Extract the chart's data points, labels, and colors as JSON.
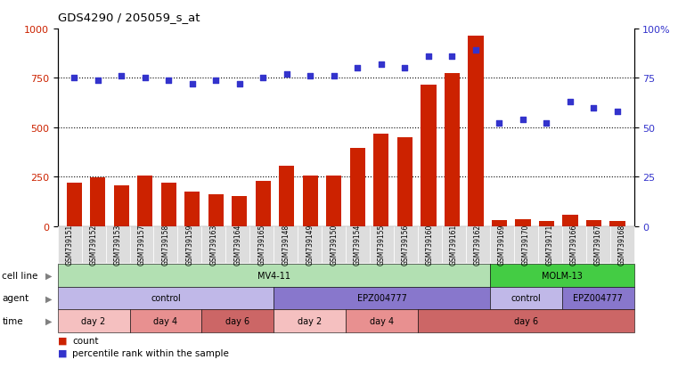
{
  "title": "GDS4290 / 205059_s_at",
  "samples": [
    "GSM739151",
    "GSM739152",
    "GSM739153",
    "GSM739157",
    "GSM739158",
    "GSM739159",
    "GSM739163",
    "GSM739164",
    "GSM739165",
    "GSM739148",
    "GSM739149",
    "GSM739150",
    "GSM739154",
    "GSM739155",
    "GSM739156",
    "GSM739160",
    "GSM739161",
    "GSM739162",
    "GSM739169",
    "GSM739170",
    "GSM739171",
    "GSM739166",
    "GSM739167",
    "GSM739168"
  ],
  "counts": [
    220,
    248,
    205,
    255,
    220,
    175,
    160,
    150,
    230,
    305,
    255,
    255,
    395,
    470,
    450,
    715,
    775,
    965,
    30,
    35,
    25,
    55,
    30,
    25
  ],
  "percentile": [
    75,
    74,
    76,
    75,
    74,
    72,
    74,
    72,
    75,
    77,
    76,
    76,
    80,
    82,
    80,
    86,
    86,
    89,
    52,
    54,
    52,
    63,
    60,
    58
  ],
  "bar_color": "#cc2200",
  "dot_color": "#3333cc",
  "ylim_left": [
    0,
    1000
  ],
  "ylim_right": [
    0,
    100
  ],
  "yticks_left": [
    0,
    250,
    500,
    750,
    1000
  ],
  "yticks_right": [
    0,
    25,
    50,
    75,
    100
  ],
  "cell_line_spans": [
    {
      "label": "MV4-11",
      "start": 0,
      "end": 18,
      "color": "#b2e0b2"
    },
    {
      "label": "MOLM-13",
      "start": 18,
      "end": 24,
      "color": "#44cc44"
    }
  ],
  "agent_spans": [
    {
      "label": "control",
      "start": 0,
      "end": 9,
      "color": "#c0b8e8"
    },
    {
      "label": "EPZ004777",
      "start": 9,
      "end": 18,
      "color": "#8877cc"
    },
    {
      "label": "control",
      "start": 18,
      "end": 21,
      "color": "#c0b8e8"
    },
    {
      "label": "EPZ004777",
      "start": 21,
      "end": 24,
      "color": "#8877cc"
    }
  ],
  "time_spans": [
    {
      "label": "day 2",
      "start": 0,
      "end": 3,
      "color": "#f5c0c0"
    },
    {
      "label": "day 4",
      "start": 3,
      "end": 6,
      "color": "#e89090"
    },
    {
      "label": "day 6",
      "start": 6,
      "end": 9,
      "color": "#cc6666"
    },
    {
      "label": "day 2",
      "start": 9,
      "end": 12,
      "color": "#f5c0c0"
    },
    {
      "label": "day 4",
      "start": 12,
      "end": 15,
      "color": "#e89090"
    },
    {
      "label": "day 6",
      "start": 15,
      "end": 24,
      "color": "#cc6666"
    }
  ],
  "legend_items": [
    {
      "color": "#cc2200",
      "label": "count"
    },
    {
      "color": "#3333cc",
      "label": "percentile rank within the sample"
    }
  ],
  "row_labels": [
    "cell line",
    "agent",
    "time"
  ],
  "bg_color": "#ffffff",
  "plot_bg_color": "#ffffff",
  "left_label_color": "#cc2200",
  "right_label_color": "#3333cc",
  "tick_bg_color": "#dddddd"
}
